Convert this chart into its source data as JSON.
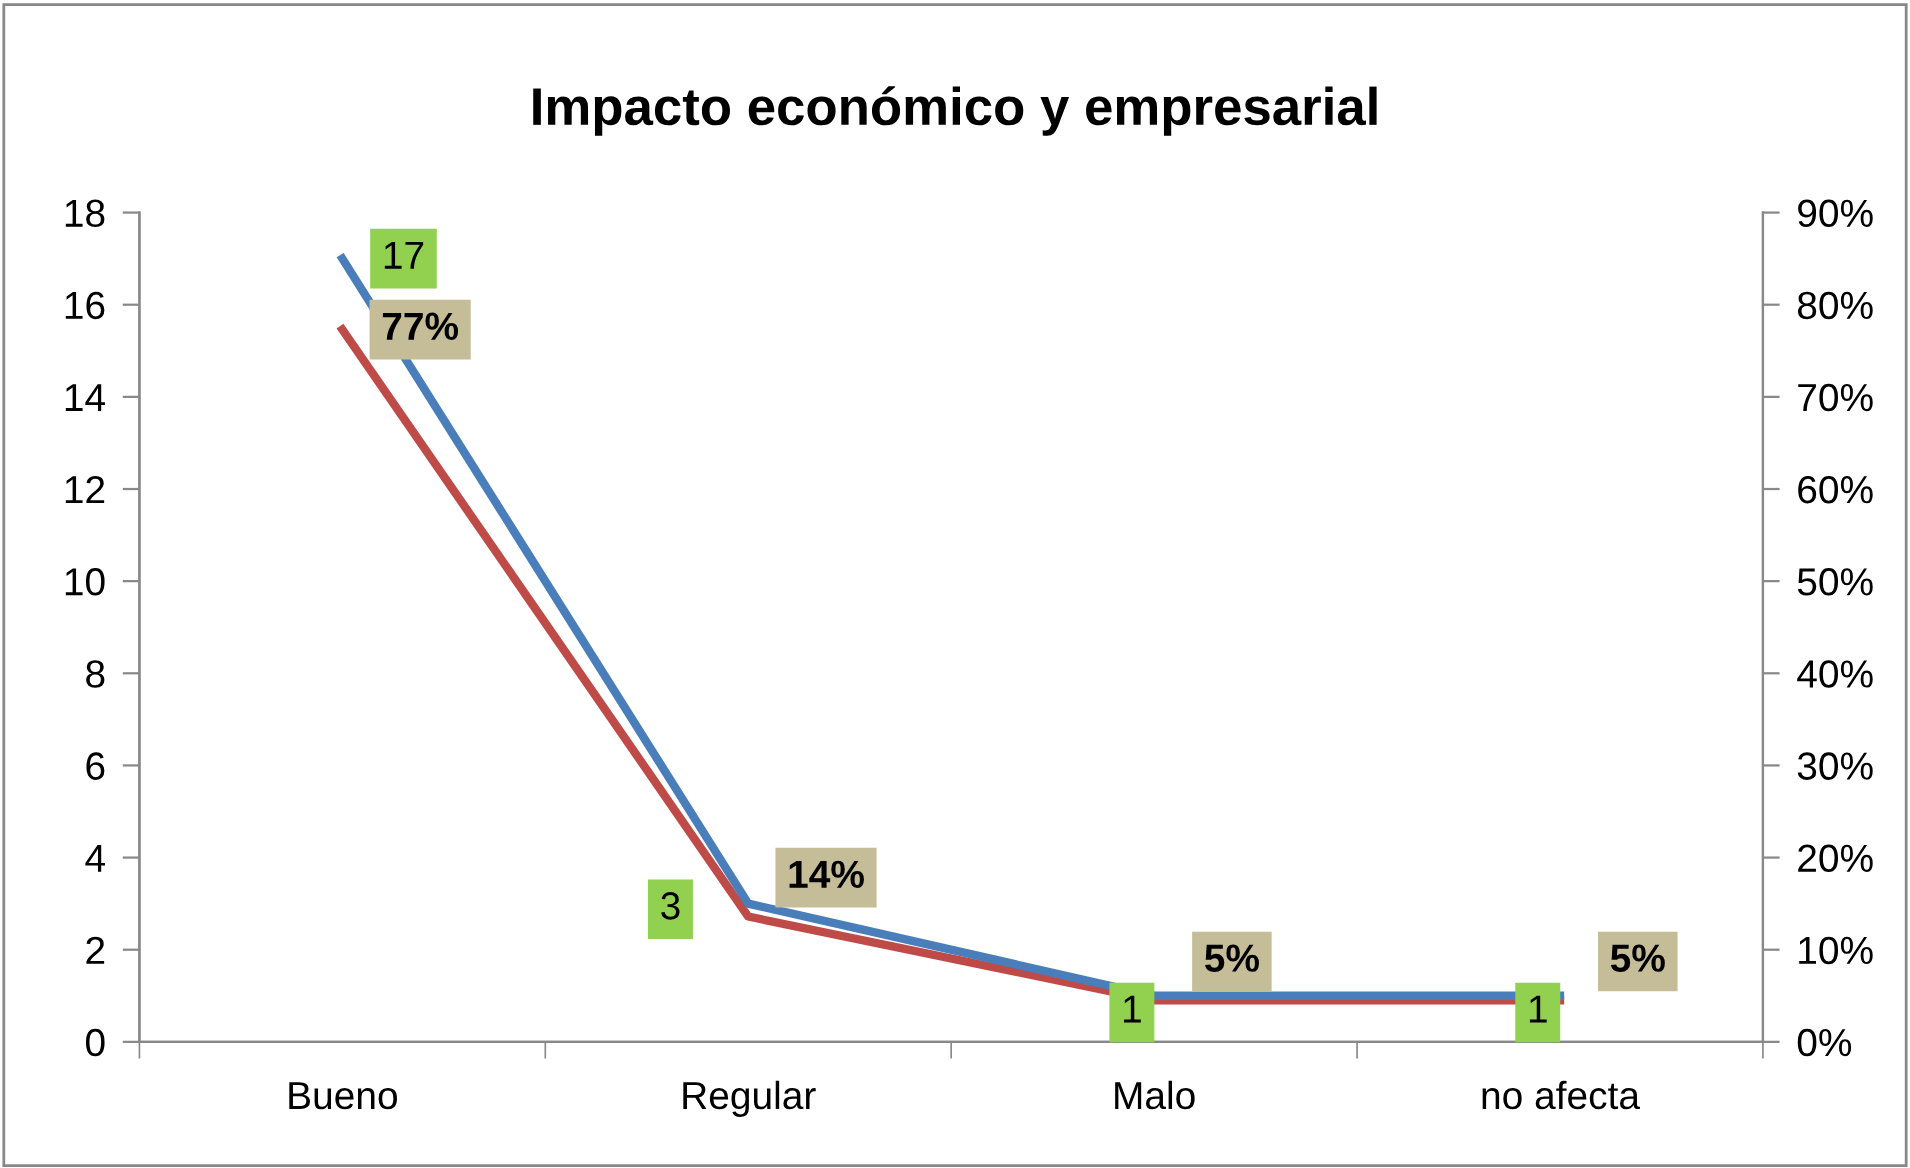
{
  "chart_data": {
    "type": "line",
    "title": "Impacto económico y empresarial",
    "categories": [
      "Bueno",
      "Regular",
      "Malo",
      "no afecta"
    ],
    "series": [
      {
        "color": "#4a7ebb",
        "values": [
          17,
          3,
          1,
          1
        ],
        "data_labels": true
      },
      {
        "color": "#be4b48",
        "values": [
          77.3,
          13.6,
          4.5,
          4.5
        ],
        "axis": "y2",
        "value_labels": [
          "77%",
          "14%",
          "5%",
          "5%"
        ]
      }
    ],
    "ylim": [
      0,
      18
    ],
    "yticks": [
      0,
      2,
      4,
      6,
      8,
      10,
      12,
      14,
      16,
      18
    ],
    "y2lim": [
      0,
      90
    ],
    "y2ticks": [
      {
        "value": 0,
        "label": "0%"
      },
      {
        "value": 10,
        "label": "10%"
      },
      {
        "value": 20,
        "label": "20%"
      },
      {
        "value": 30,
        "label": "30%"
      },
      {
        "value": 40,
        "label": "40%"
      },
      {
        "value": 50,
        "label": "50%"
      },
      {
        "value": 60,
        "label": "60%"
      },
      {
        "value": 70,
        "label": "70%"
      },
      {
        "value": 80,
        "label": "80%"
      },
      {
        "value": 90,
        "label": "90%"
      }
    ],
    "grid": false,
    "legend": false,
    "marker": "none",
    "line_style": "solid"
  }
}
